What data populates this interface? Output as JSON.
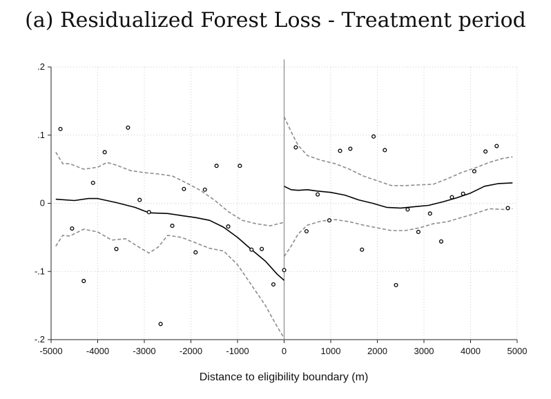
{
  "chart_data": {
    "type": "scatter",
    "title": "(a) Residualized Forest Loss - Treatment period",
    "xlabel": "Distance to eligibility boundary (m)",
    "ylabel": "",
    "xlim": [
      -5000,
      5000
    ],
    "ylim": [
      -0.2,
      0.2
    ],
    "x_ticks": [
      -5000,
      -4000,
      -3000,
      -2000,
      -1000,
      0,
      1000,
      2000,
      3000,
      4000,
      5000
    ],
    "x_tick_labels": [
      "-5000",
      "-4000",
      "-3000",
      "-2000",
      "-1000",
      "0",
      "1000",
      "2000",
      "3000",
      "4000",
      "5000"
    ],
    "y_ticks": [
      -0.2,
      -0.1,
      0,
      0.1,
      0.2
    ],
    "y_tick_labels": [
      "-.2",
      "-.1",
      "0",
      ".1",
      ".2"
    ],
    "grid": true,
    "cutoff": 0,
    "colors": {
      "points": "#000000",
      "fit": "#000000",
      "ci": "#8c8c8c",
      "grid": "#c8c8c8"
    },
    "scatter": [
      {
        "x": -4800,
        "y": 0.109
      },
      {
        "x": -4550,
        "y": -0.037
      },
      {
        "x": -4300,
        "y": -0.114
      },
      {
        "x": -4100,
        "y": 0.03
      },
      {
        "x": -3850,
        "y": 0.075
      },
      {
        "x": -3600,
        "y": -0.067
      },
      {
        "x": -3350,
        "y": 0.111
      },
      {
        "x": -3100,
        "y": 0.005
      },
      {
        "x": -2900,
        "y": -0.013
      },
      {
        "x": -2650,
        "y": -0.177
      },
      {
        "x": -2400,
        "y": -0.033
      },
      {
        "x": -2150,
        "y": 0.021
      },
      {
        "x": -1900,
        "y": -0.072
      },
      {
        "x": -1700,
        "y": 0.02
      },
      {
        "x": -1450,
        "y": 0.055
      },
      {
        "x": -1200,
        "y": -0.034
      },
      {
        "x": -950,
        "y": 0.055
      },
      {
        "x": -700,
        "y": -0.068
      },
      {
        "x": -480,
        "y": -0.067
      },
      {
        "x": -230,
        "y": -0.119
      },
      {
        "x": 0,
        "y": -0.098
      },
      {
        "x": 250,
        "y": 0.082
      },
      {
        "x": 480,
        "y": -0.041
      },
      {
        "x": 720,
        "y": 0.013
      },
      {
        "x": 970,
        "y": -0.025
      },
      {
        "x": 1200,
        "y": 0.077
      },
      {
        "x": 1420,
        "y": 0.08
      },
      {
        "x": 1670,
        "y": -0.068
      },
      {
        "x": 1920,
        "y": 0.098
      },
      {
        "x": 2160,
        "y": 0.078
      },
      {
        "x": 2400,
        "y": -0.12
      },
      {
        "x": 2650,
        "y": -0.009
      },
      {
        "x": 2880,
        "y": -0.042
      },
      {
        "x": 3130,
        "y": -0.015
      },
      {
        "x": 3370,
        "y": -0.056
      },
      {
        "x": 3600,
        "y": 0.009
      },
      {
        "x": 3840,
        "y": 0.014
      },
      {
        "x": 4080,
        "y": 0.047
      },
      {
        "x": 4320,
        "y": 0.076
      },
      {
        "x": 4560,
        "y": 0.084
      },
      {
        "x": 4800,
        "y": -0.007
      }
    ],
    "series": [
      {
        "role": "fit-left",
        "x": [
          -4900,
          -4500,
          -4200,
          -4000,
          -3600,
          -3200,
          -2900,
          -2500,
          -2200,
          -1900,
          -1600,
          -1300,
          -1000,
          -700,
          -400,
          -150,
          0
        ],
        "y": [
          0.006,
          0.004,
          0.007,
          0.007,
          0.001,
          -0.006,
          -0.014,
          -0.015,
          -0.018,
          -0.021,
          -0.025,
          -0.035,
          -0.05,
          -0.068,
          -0.085,
          -0.104,
          -0.113
        ]
      },
      {
        "role": "ci-upper-left",
        "x": [
          -4900,
          -4750,
          -4600,
          -4300,
          -4000,
          -3800,
          -3600,
          -3300,
          -3000,
          -2700,
          -2400,
          -2100,
          -1800,
          -1500,
          -1200,
          -900,
          -600,
          -300,
          0
        ],
        "y": [
          0.075,
          0.058,
          0.058,
          0.05,
          0.053,
          0.06,
          0.056,
          0.048,
          0.045,
          0.043,
          0.04,
          0.03,
          0.019,
          0.005,
          -0.012,
          -0.025,
          -0.03,
          -0.033,
          -0.028
        ]
      },
      {
        "role": "ci-lower-left",
        "x": [
          -4900,
          -4750,
          -4600,
          -4300,
          -4000,
          -3700,
          -3400,
          -3100,
          -2900,
          -2700,
          -2500,
          -2200,
          -1900,
          -1600,
          -1300,
          -1000,
          -700,
          -400,
          -200,
          0
        ],
        "y": [
          -0.063,
          -0.047,
          -0.048,
          -0.038,
          -0.042,
          -0.054,
          -0.052,
          -0.065,
          -0.073,
          -0.064,
          -0.047,
          -0.05,
          -0.058,
          -0.066,
          -0.07,
          -0.09,
          -0.12,
          -0.15,
          -0.175,
          -0.198
        ]
      },
      {
        "role": "fit-right",
        "x": [
          0,
          150,
          300,
          500,
          700,
          1000,
          1300,
          1600,
          1900,
          2200,
          2500,
          2800,
          3100,
          3400,
          3700,
          4000,
          4300,
          4600,
          4900
        ],
        "y": [
          0.025,
          0.02,
          0.019,
          0.02,
          0.018,
          0.016,
          0.012,
          0.005,
          0.0,
          -0.006,
          -0.007,
          -0.005,
          -0.003,
          0.002,
          0.008,
          0.015,
          0.025,
          0.029,
          0.03
        ]
      },
      {
        "role": "ci-upper-right",
        "x": [
          0,
          150,
          300,
          500,
          800,
          1100,
          1400,
          1700,
          2000,
          2300,
          2600,
          2900,
          3200,
          3500,
          3800,
          4100,
          4400,
          4700,
          4900
        ],
        "y": [
          0.127,
          0.105,
          0.085,
          0.07,
          0.063,
          0.058,
          0.05,
          0.04,
          0.033,
          0.026,
          0.026,
          0.027,
          0.028,
          0.036,
          0.045,
          0.052,
          0.06,
          0.066,
          0.068
        ]
      },
      {
        "role": "ci-lower-right",
        "x": [
          0,
          150,
          300,
          500,
          800,
          1100,
          1400,
          1700,
          2000,
          2300,
          2600,
          2900,
          3200,
          3500,
          3800,
          4100,
          4400,
          4700,
          4900
        ],
        "y": [
          -0.078,
          -0.063,
          -0.045,
          -0.032,
          -0.026,
          -0.024,
          -0.027,
          -0.032,
          -0.036,
          -0.04,
          -0.04,
          -0.036,
          -0.03,
          -0.027,
          -0.021,
          -0.015,
          -0.008,
          -0.009,
          -0.008
        ]
      }
    ]
  }
}
